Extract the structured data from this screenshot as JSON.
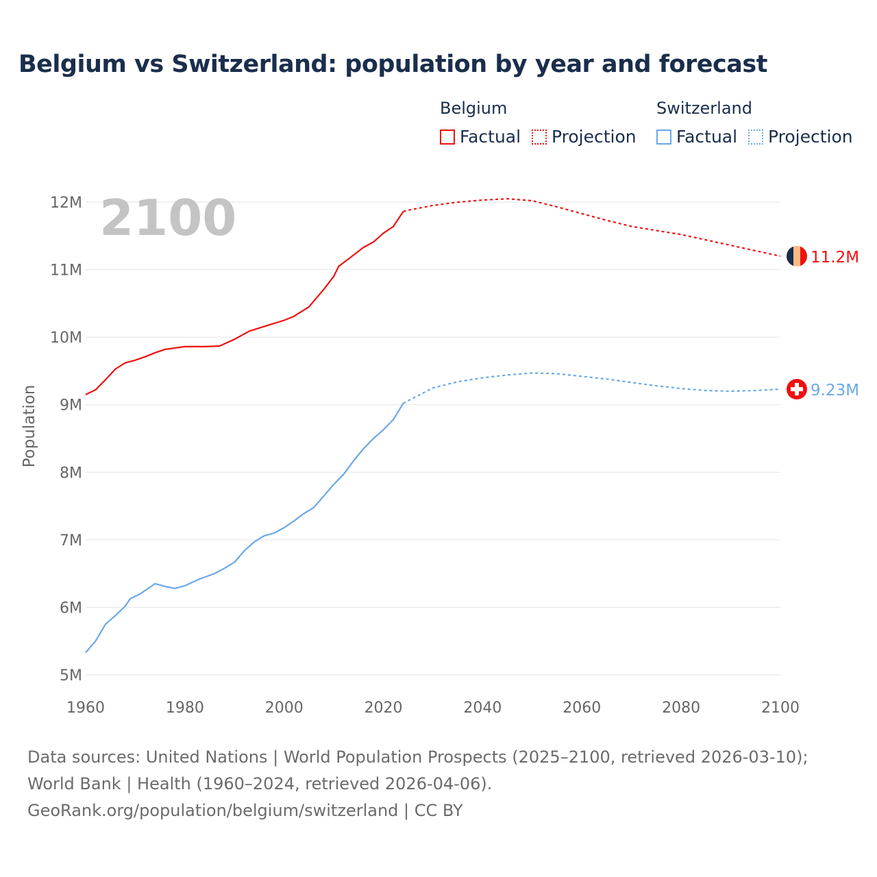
{
  "title": "Belgium vs Switzerland: population by year and forecast",
  "legend": {
    "groups": [
      {
        "name": "Belgium",
        "items": [
          "Factual",
          "Projection"
        ],
        "color": "#f01010"
      },
      {
        "name": "Switzerland",
        "items": [
          "Factual",
          "Projection"
        ],
        "color": "#6aa8e8"
      }
    ]
  },
  "footer": {
    "sources": "Data sources: United Nations | World Population Prospects (2025–2100, retrieved 2026-03-10); World Bank | Health (1960–2024, retrieved 2026-04-06).",
    "link": "GeoRank.org/population/belgium/switzerland | CC BY"
  },
  "chart_data": {
    "type": "line",
    "title": "Belgium vs Switzerland: population by year and forecast",
    "xlabel": "",
    "ylabel": "Population",
    "year_label": "2100",
    "xlim": [
      1960,
      2100
    ],
    "ylim": [
      5000000,
      12000000
    ],
    "x_ticks": [
      "1960",
      "1980",
      "2000",
      "2020",
      "2040",
      "2060",
      "2080",
      "2100"
    ],
    "y_ticks": [
      "5M",
      "6M",
      "7M",
      "8M",
      "9M",
      "10M",
      "11M",
      "12M"
    ],
    "grid": true,
    "legend_position": "top-right",
    "series": [
      {
        "name": "Belgium",
        "color": "#f01010",
        "end_label": "11.2M",
        "factual": [
          [
            1960,
            9.15
          ],
          [
            1962,
            9.22
          ],
          [
            1964,
            9.37
          ],
          [
            1966,
            9.53
          ],
          [
            1968,
            9.62
          ],
          [
            1970,
            9.66
          ],
          [
            1972,
            9.71
          ],
          [
            1974,
            9.77
          ],
          [
            1976,
            9.82
          ],
          [
            1978,
            9.84
          ],
          [
            1980,
            9.86
          ],
          [
            1984,
            9.86
          ],
          [
            1987,
            9.87
          ],
          [
            1990,
            9.97
          ],
          [
            1993,
            10.09
          ],
          [
            1996,
            10.16
          ],
          [
            2000,
            10.25
          ],
          [
            2002,
            10.31
          ],
          [
            2005,
            10.45
          ],
          [
            2008,
            10.71
          ],
          [
            2010,
            10.9
          ],
          [
            2011,
            11.05
          ],
          [
            2013,
            11.16
          ],
          [
            2016,
            11.33
          ],
          [
            2018,
            11.41
          ],
          [
            2020,
            11.54
          ],
          [
            2022,
            11.64
          ],
          [
            2024,
            11.86
          ]
        ],
        "projection": [
          [
            2024,
            11.86
          ],
          [
            2025,
            11.88
          ],
          [
            2030,
            11.95
          ],
          [
            2035,
            12.0
          ],
          [
            2040,
            12.03
          ],
          [
            2045,
            12.05
          ],
          [
            2050,
            12.02
          ],
          [
            2055,
            11.93
          ],
          [
            2060,
            11.83
          ],
          [
            2065,
            11.73
          ],
          [
            2070,
            11.64
          ],
          [
            2075,
            11.58
          ],
          [
            2080,
            11.52
          ],
          [
            2085,
            11.44
          ],
          [
            2090,
            11.36
          ],
          [
            2095,
            11.28
          ],
          [
            2100,
            11.2
          ]
        ]
      },
      {
        "name": "Switzerland",
        "color": "#6aa8e8",
        "end_label": "9.23M",
        "factual": [
          [
            1960,
            5.33
          ],
          [
            1962,
            5.5
          ],
          [
            1964,
            5.75
          ],
          [
            1966,
            5.88
          ],
          [
            1968,
            6.02
          ],
          [
            1969,
            6.13
          ],
          [
            1971,
            6.2
          ],
          [
            1974,
            6.35
          ],
          [
            1976,
            6.31
          ],
          [
            1978,
            6.28
          ],
          [
            1980,
            6.32
          ],
          [
            1983,
            6.42
          ],
          [
            1986,
            6.5
          ],
          [
            1988,
            6.58
          ],
          [
            1990,
            6.67
          ],
          [
            1992,
            6.84
          ],
          [
            1994,
            6.97
          ],
          [
            1996,
            7.06
          ],
          [
            1998,
            7.1
          ],
          [
            2000,
            7.18
          ],
          [
            2002,
            7.28
          ],
          [
            2004,
            7.39
          ],
          [
            2006,
            7.48
          ],
          [
            2008,
            7.65
          ],
          [
            2010,
            7.82
          ],
          [
            2012,
            7.97
          ],
          [
            2014,
            8.17
          ],
          [
            2016,
            8.35
          ],
          [
            2018,
            8.5
          ],
          [
            2020,
            8.63
          ],
          [
            2022,
            8.78
          ],
          [
            2024,
            9.02
          ]
        ],
        "projection": [
          [
            2024,
            9.02
          ],
          [
            2025,
            9.06
          ],
          [
            2030,
            9.25
          ],
          [
            2035,
            9.34
          ],
          [
            2040,
            9.4
          ],
          [
            2045,
            9.44
          ],
          [
            2050,
            9.47
          ],
          [
            2055,
            9.46
          ],
          [
            2060,
            9.42
          ],
          [
            2065,
            9.38
          ],
          [
            2070,
            9.33
          ],
          [
            2075,
            9.28
          ],
          [
            2080,
            9.24
          ],
          [
            2085,
            9.21
          ],
          [
            2090,
            9.2
          ],
          [
            2095,
            9.21
          ],
          [
            2100,
            9.23
          ]
        ]
      }
    ]
  }
}
